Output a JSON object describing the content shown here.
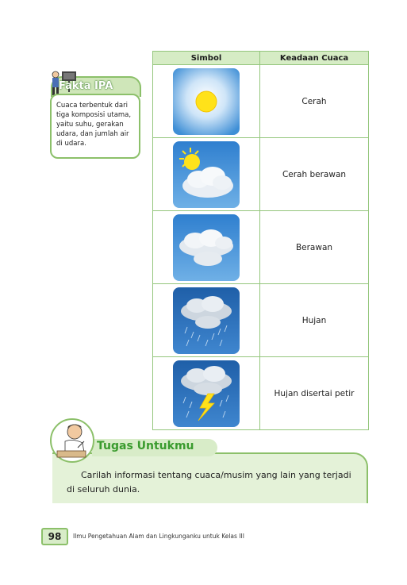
{
  "fakta": {
    "title": "Fakta IPA",
    "text": "Cuaca terbentuk dari tiga komposisi utama, yaitu suhu, gerakan udara, dan jumlah air di udara."
  },
  "table": {
    "headers": [
      "Simbol",
      "Keadaan Cuaca"
    ],
    "rows": [
      {
        "icon": "sun-icon",
        "label": "Cerah"
      },
      {
        "icon": "sun-cloud-icon",
        "label": "Cerah berawan"
      },
      {
        "icon": "cloud-icon",
        "label": "Berawan"
      },
      {
        "icon": "rain-icon",
        "label": "Hujan"
      },
      {
        "icon": "thunderstorm-icon",
        "label": "Hujan disertai petir"
      }
    ]
  },
  "tugas": {
    "title": "Tugas Untukmu",
    "text": "Carilah informasi tentang cuaca/musim yang lain yang terjadi di seluruh dunia."
  },
  "footer": {
    "page_number": "98",
    "book_title": "Ilmu Pengetahuan Alam dan Lingkunganku untuk Kelas III"
  },
  "colors": {
    "accent_green": "#8cc06a",
    "light_green": "#d6ecc5",
    "title_green": "#3a9b2e",
    "sky_blue": "#3f8fd6"
  }
}
